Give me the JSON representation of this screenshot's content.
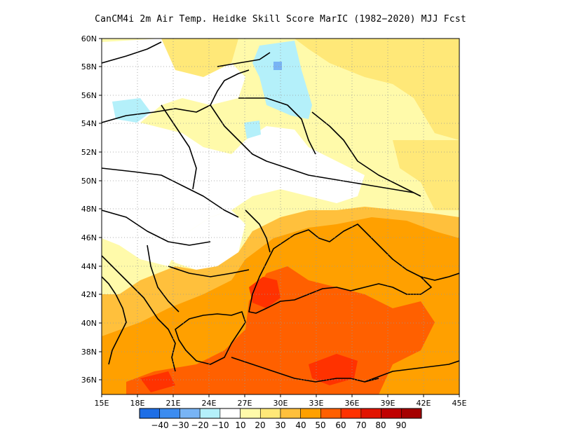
{
  "title": "CanCM4i  2m Air Temp. Heidke Skill Score MarIC (1982−2020) MJJ Fcst",
  "map": {
    "lon_range": [
      15,
      45
    ],
    "lat_range": [
      35,
      60
    ],
    "x_ticks": [
      "15E",
      "18E",
      "21E",
      "24E",
      "27E",
      "30E",
      "33E",
      "36E",
      "39E",
      "42E",
      "45E"
    ],
    "y_ticks": [
      "36N",
      "38N",
      "40N",
      "42N",
      "44N",
      "46N",
      "48N",
      "50N",
      "52N",
      "54N",
      "56N",
      "58N",
      "60N"
    ],
    "grid": "dotted"
  },
  "colorbar": {
    "labels": [
      "−40",
      "−30",
      "−20",
      "−10",
      "10",
      "20",
      "30",
      "40",
      "50",
      "60",
      "70",
      "80",
      "90"
    ],
    "colors": [
      "#1e6ee6",
      "#3c8cf0",
      "#78b4f5",
      "#b4f0fa",
      "#ffffff",
      "#fffaaa",
      "#ffe878",
      "#ffc03c",
      "#ffa000",
      "#ff6000",
      "#ff3200",
      "#e11400",
      "#c00000",
      "#a50000"
    ]
  },
  "chart_data": {
    "type": "heatmap",
    "title": "CanCM4i  2m Air Temp. Heidke Skill Score MarIC (1982−2020) MJJ Fcst",
    "x_ticks": [
      "15E",
      "18E",
      "21E",
      "24E",
      "27E",
      "30E",
      "33E",
      "36E",
      "39E",
      "42E",
      "45E"
    ],
    "y_ticks": [
      "36N",
      "38N",
      "40N",
      "42N",
      "44N",
      "46N",
      "48N",
      "50N",
      "52N",
      "54N",
      "56N",
      "58N",
      "60N"
    ],
    "xlim": [
      15,
      45
    ],
    "ylim": [
      35,
      60
    ],
    "levels": [
      -40,
      -30,
      -20,
      -10,
      10,
      20,
      30,
      40,
      50,
      60,
      70,
      80,
      90
    ]
  }
}
